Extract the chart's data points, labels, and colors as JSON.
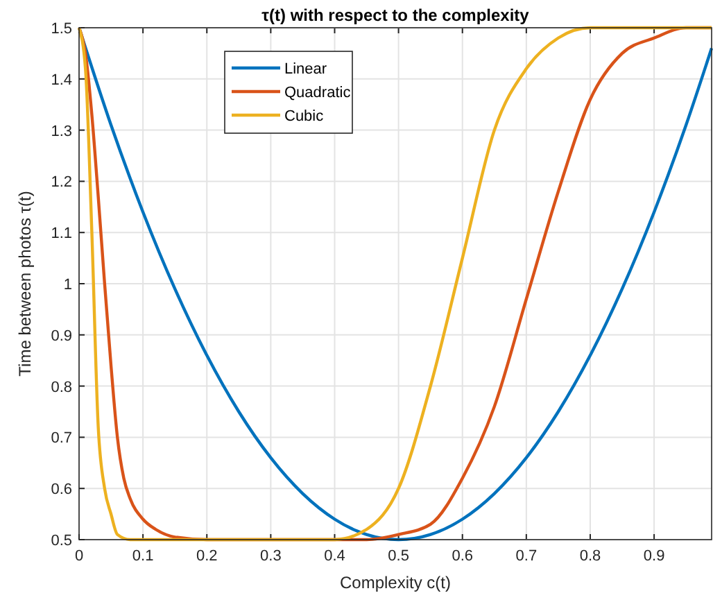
{
  "chart_data": {
    "type": "line",
    "title": "τ(t) with respect to the complexity",
    "xlabel": "Complexity c(t)",
    "ylabel": "Time between photos τ(t)",
    "xlim": [
      0,
      0.99
    ],
    "ylim": [
      0.5,
      1.5
    ],
    "xticks": [
      0,
      0.1,
      0.2,
      0.3,
      0.4,
      0.5,
      0.6,
      0.7,
      0.8,
      0.9
    ],
    "yticks": [
      0.5,
      0.6,
      0.7,
      0.8,
      0.9,
      1,
      1.1,
      1.2,
      1.3,
      1.4,
      1.5
    ],
    "grid": true,
    "legend": "top left",
    "line_style": "solid",
    "series": [
      {
        "name": "Linear",
        "color": "#0072bd",
        "x": [
          0,
          0.05,
          0.1,
          0.15,
          0.2,
          0.25,
          0.3,
          0.35,
          0.4,
          0.45,
          0.5,
          0.55,
          0.6,
          0.65,
          0.7,
          0.75,
          0.8,
          0.85,
          0.9,
          0.95,
          0.99
        ],
        "values": [
          1.5,
          1.31,
          1.14,
          0.99,
          0.86,
          0.75,
          0.66,
          0.59,
          0.54,
          0.51,
          0.5,
          0.51,
          0.54,
          0.59,
          0.66,
          0.75,
          0.86,
          0.99,
          1.14,
          1.31,
          1.46
        ]
      },
      {
        "name": "Quadratic",
        "color": "#d95319",
        "x": [
          0,
          0.01,
          0.02,
          0.03,
          0.04,
          0.05,
          0.06,
          0.07,
          0.08,
          0.1,
          0.12,
          0.15,
          0.2,
          0.45,
          0.5,
          0.55,
          0.6,
          0.65,
          0.7,
          0.75,
          0.8,
          0.85,
          0.9,
          0.95,
          0.99
        ],
        "values": [
          1.5,
          1.45,
          1.33,
          1.17,
          1,
          0.84,
          0.7,
          0.62,
          0.58,
          0.54,
          0.52,
          0.505,
          0.5,
          0.5,
          0.51,
          0.53,
          0.62,
          0.76,
          0.97,
          1.18,
          1.36,
          1.45,
          1.48,
          1.5,
          1.5
        ]
      },
      {
        "name": "Cubic",
        "color": "#edb120",
        "x": [
          0,
          0.01,
          0.02,
          0.03,
          0.04,
          0.05,
          0.06,
          0.08,
          0.4,
          0.45,
          0.5,
          0.55,
          0.6,
          0.65,
          0.7,
          0.75,
          0.8,
          0.99
        ],
        "values": [
          1.5,
          1.42,
          1.1,
          0.72,
          0.6,
          0.55,
          0.51,
          0.5,
          0.5,
          0.52,
          0.6,
          0.8,
          1.05,
          1.3,
          1.42,
          1.48,
          1.5,
          1.5
        ]
      }
    ]
  }
}
